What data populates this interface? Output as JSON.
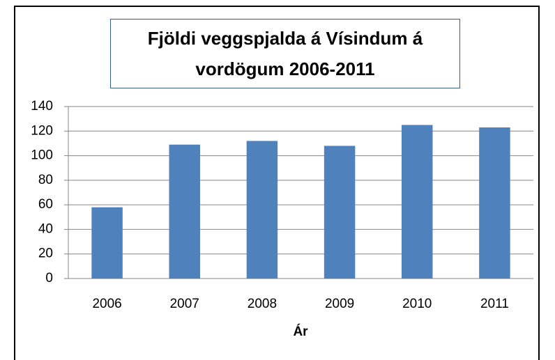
{
  "chart_data": {
    "type": "bar",
    "title": "Fjöldi veggspjalda á Vísindum á vordögum 2006-2011",
    "x_label": "Ár",
    "categories": [
      "2006",
      "2007",
      "2008",
      "2009",
      "2010",
      "2011"
    ],
    "values": [
      58,
      109,
      112,
      108,
      125,
      123
    ],
    "color": "#4f81bd",
    "ylim": [
      0,
      140
    ],
    "yticks": [
      0,
      20,
      40,
      60,
      80,
      100,
      120,
      140
    ],
    "grid": true
  }
}
